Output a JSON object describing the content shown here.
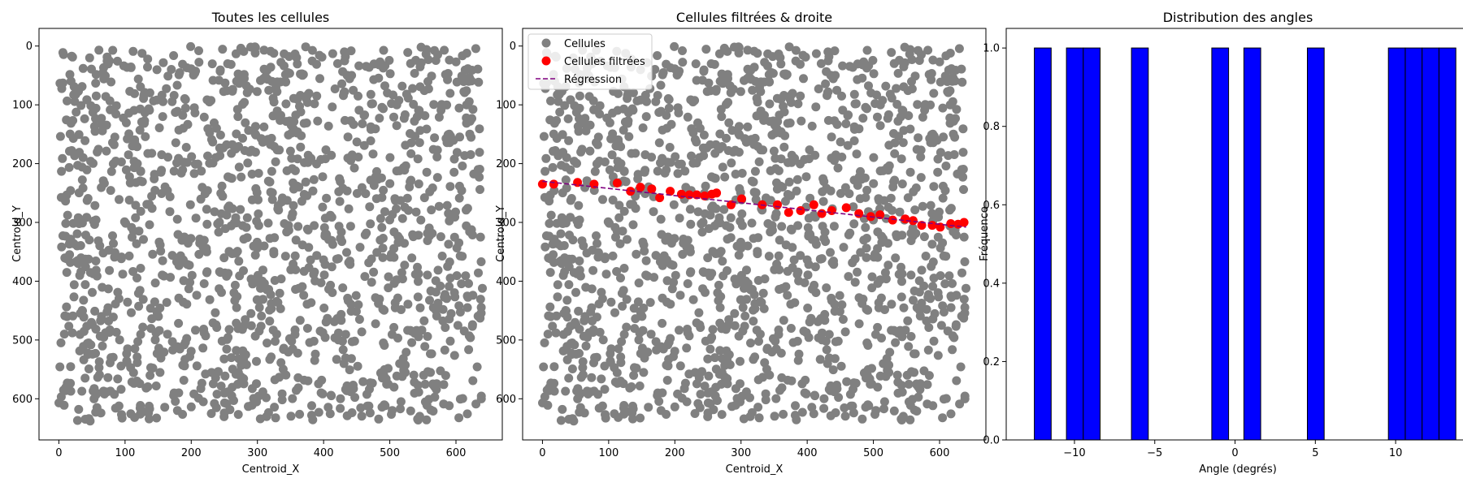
{
  "colors": {
    "cells": "#808080",
    "filtered": "#ff0000",
    "regression": "#800080",
    "histogram": "#0000ff",
    "edge": "#000000"
  },
  "chart_data": [
    {
      "type": "scatter",
      "title": "Toutes les cellules",
      "xlabel": "Centroid_X",
      "ylabel": "Centroid_Y",
      "xlim": [
        -30,
        670
      ],
      "ylim": [
        670,
        -30
      ],
      "y_inverted": true,
      "xticks": [
        0,
        100,
        200,
        300,
        400,
        500,
        600
      ],
      "yticks": [
        0,
        100,
        200,
        300,
        400,
        500,
        600
      ],
      "series": [
        {
          "name": "Cellules",
          "approx_point_count": 1500,
          "x_range": [
            0,
            640
          ],
          "y_range": [
            0,
            640
          ],
          "distribution": "uniform"
        }
      ]
    },
    {
      "type": "scatter",
      "title": "Cellules filtrées & droite",
      "xlabel": "Centroid_X",
      "ylabel": "Centroid_Y",
      "xlim": [
        -30,
        670
      ],
      "ylim": [
        670,
        -30
      ],
      "y_inverted": true,
      "xticks": [
        0,
        100,
        200,
        300,
        400,
        500,
        600
      ],
      "yticks": [
        0,
        100,
        200,
        300,
        400,
        500,
        600
      ],
      "legend": {
        "position": "upper-left",
        "entries": [
          "Cellules",
          "Cellules filtrées",
          "Régression"
        ]
      },
      "series": [
        {
          "name": "Cellules",
          "approx_point_count": 1500,
          "x_range": [
            0,
            640
          ],
          "y_range": [
            0,
            640
          ],
          "distribution": "uniform"
        },
        {
          "name": "Cellules filtrées",
          "points": [
            [
              0,
              235
            ],
            [
              17,
              235
            ],
            [
              53,
              232
            ],
            [
              78,
              235
            ],
            [
              113,
              233
            ],
            [
              133,
              247
            ],
            [
              148,
              240
            ],
            [
              165,
              243
            ],
            [
              177,
              258
            ],
            [
              193,
              247
            ],
            [
              210,
              252
            ],
            [
              222,
              253
            ],
            [
              233,
              253
            ],
            [
              245,
              255
            ],
            [
              256,
              252
            ],
            [
              263,
              250
            ],
            [
              285,
              270
            ],
            [
              301,
              260
            ],
            [
              332,
              270
            ],
            [
              355,
              270
            ],
            [
              372,
              283
            ],
            [
              390,
              280
            ],
            [
              410,
              270
            ],
            [
              422,
              285
            ],
            [
              437,
              280
            ],
            [
              459,
              275
            ],
            [
              478,
              285
            ],
            [
              496,
              290
            ],
            [
              510,
              287
            ],
            [
              529,
              296
            ],
            [
              548,
              294
            ],
            [
              560,
              297
            ],
            [
              573,
              305
            ],
            [
              589,
              305
            ],
            [
              601,
              308
            ],
            [
              617,
              302
            ],
            [
              628,
              303
            ],
            [
              637,
              300
            ]
          ]
        },
        {
          "name": "Régression",
          "style": "dashed",
          "line": [
            [
              0,
              230
            ],
            [
              640,
              308
            ]
          ]
        }
      ]
    },
    {
      "type": "bar",
      "title": "Distribution des angles",
      "xlabel": "Angle (degrés)",
      "ylabel": "Fréquence",
      "xlim": [
        -14.25,
        14.6
      ],
      "ylim": [
        0,
        1.05
      ],
      "xticks": [
        -10,
        -5,
        0,
        5,
        10
      ],
      "xtick_labels": [
        "−10",
        "−5",
        "0",
        "5",
        "10"
      ],
      "yticks": [
        0.0,
        0.2,
        0.4,
        0.6,
        0.8,
        1.0
      ],
      "ytick_labels": [
        "0.0",
        "0.2",
        "0.4",
        "0.6",
        "0.8",
        "1.0"
      ],
      "bins": [
        {
          "left": -12.5,
          "right": -11.45,
          "count": 1
        },
        {
          "left": -10.5,
          "right": -9.45,
          "count": 1
        },
        {
          "left": -9.45,
          "right": -8.4,
          "count": 1
        },
        {
          "left": -6.45,
          "right": -5.4,
          "count": 1
        },
        {
          "left": -1.45,
          "right": -0.4,
          "count": 1
        },
        {
          "left": 0.55,
          "right": 1.6,
          "count": 1
        },
        {
          "left": 4.5,
          "right": 5.55,
          "count": 1
        },
        {
          "left": 9.55,
          "right": 10.6,
          "count": 1
        },
        {
          "left": 10.6,
          "right": 11.65,
          "count": 1
        },
        {
          "left": 11.65,
          "right": 12.7,
          "count": 1
        },
        {
          "left": 12.7,
          "right": 13.75,
          "count": 1
        }
      ]
    }
  ]
}
